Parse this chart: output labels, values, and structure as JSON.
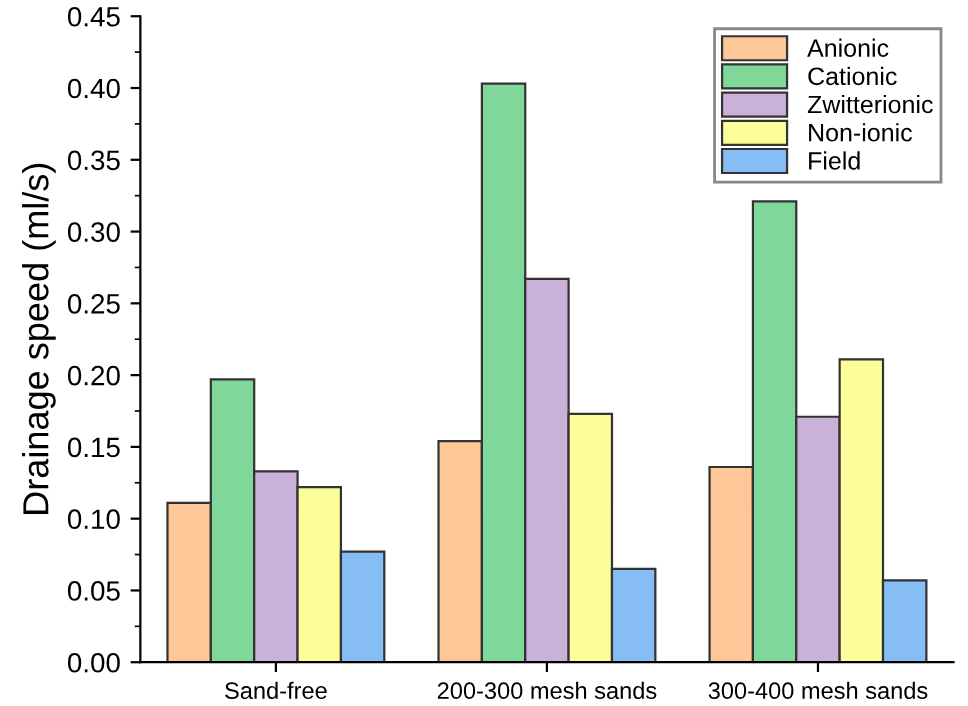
{
  "chart_data": {
    "type": "bar",
    "ylabel": "Drainage speed (ml/s)",
    "categories": [
      "Sand-free",
      "200-300 mesh sands",
      "300-400 mesh sands"
    ],
    "series": [
      {
        "name": "Anionic",
        "color": "#fdc797",
        "values": [
          0.111,
          0.154,
          0.136
        ]
      },
      {
        "name": "Cationic",
        "color": "#7fd89a",
        "values": [
          0.197,
          0.403,
          0.321
        ]
      },
      {
        "name": "Zwitterionic",
        "color": "#c9b1d9",
        "values": [
          0.133,
          0.267,
          0.171
        ]
      },
      {
        "name": "Non-ionic",
        "color": "#fdfd99",
        "values": [
          0.122,
          0.173,
          0.211
        ]
      },
      {
        "name": "Field",
        "color": "#86bdf5",
        "values": [
          0.077,
          0.065,
          0.057
        ]
      }
    ],
    "ylim": [
      0,
      0.45
    ],
    "yticks": [
      {
        "value": 0,
        "label": "0.00"
      },
      {
        "value": 0.05,
        "label": "0.05"
      },
      {
        "value": 0.1,
        "label": "0.10"
      },
      {
        "value": 0.15,
        "label": "0.15"
      },
      {
        "value": 0.2,
        "label": "0.20"
      },
      {
        "value": 0.25,
        "label": "0.25"
      },
      {
        "value": 0.3,
        "label": "0.30"
      },
      {
        "value": 0.35,
        "label": "0.35"
      },
      {
        "value": 0.4,
        "label": "0.40"
      },
      {
        "value": 0.45,
        "label": "0.45"
      }
    ],
    "grid": false,
    "legend": "top right"
  }
}
